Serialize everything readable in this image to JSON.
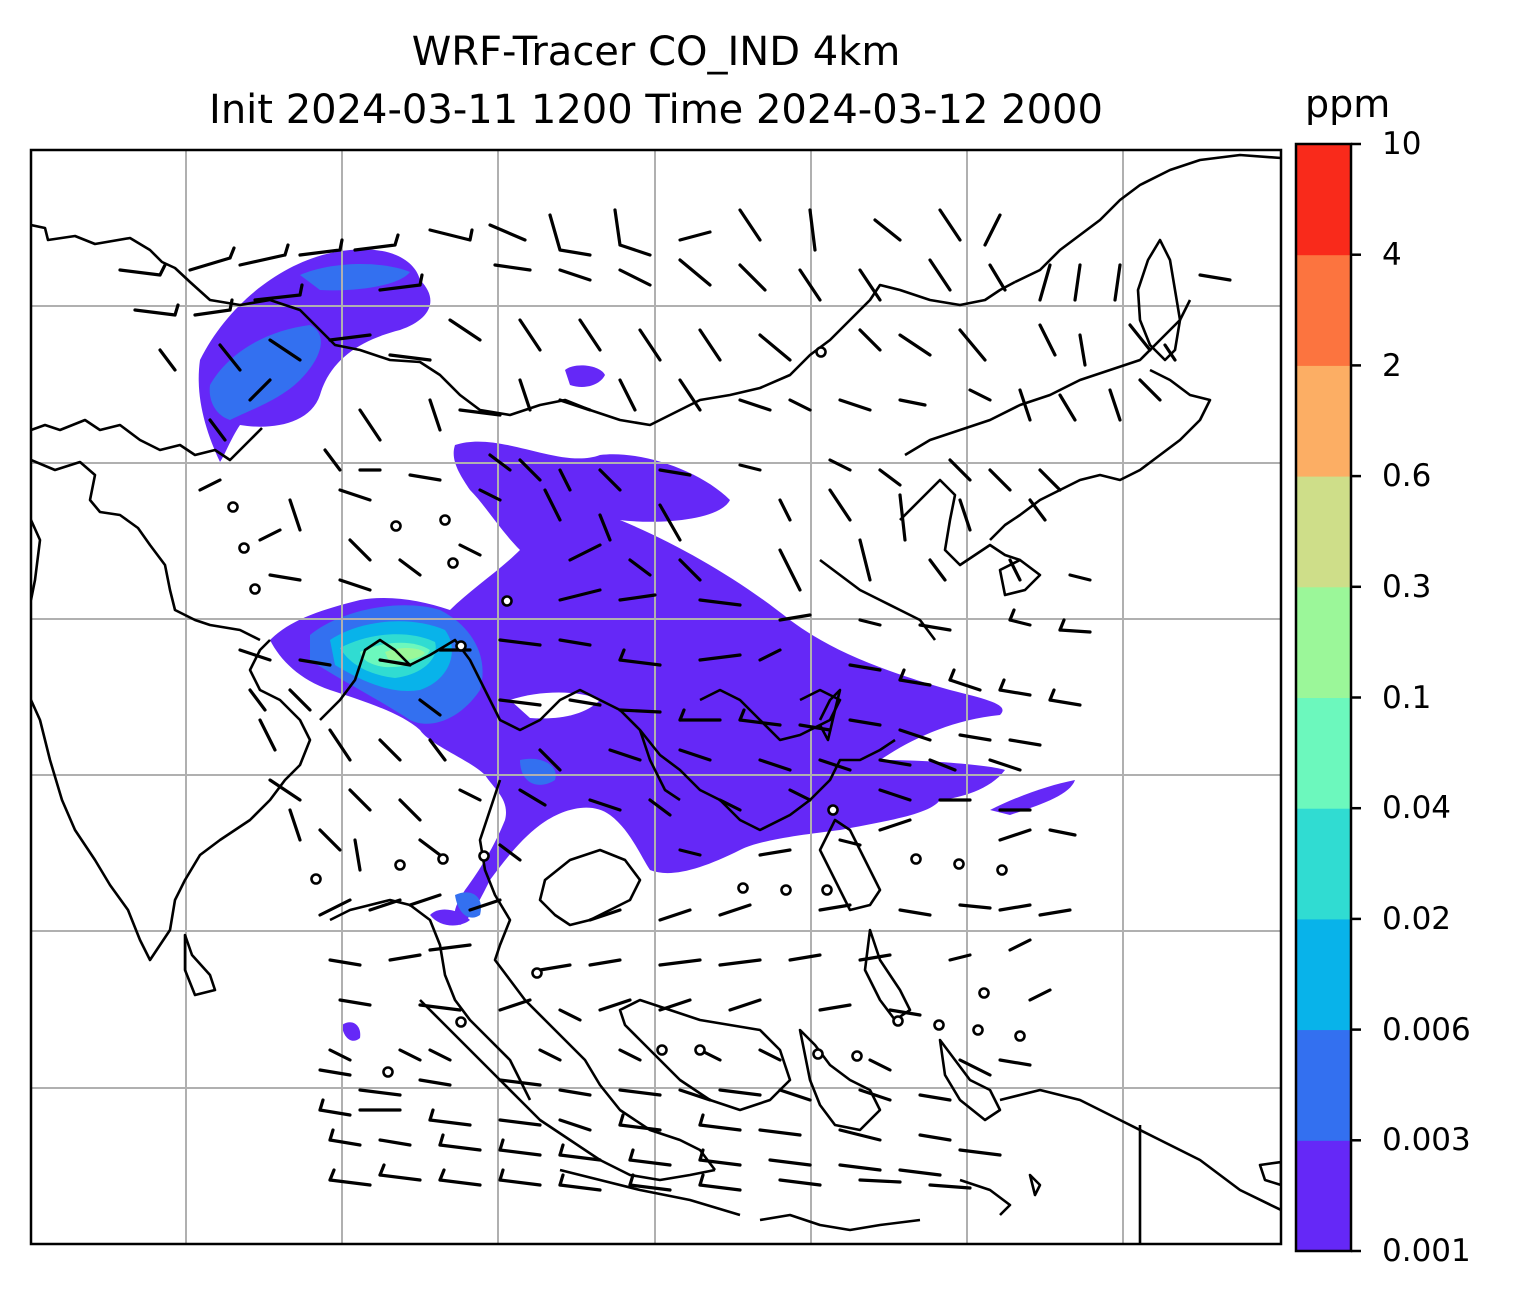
{
  "title": {
    "line1": "WRF-Tracer CO_IND 4km",
    "line2": "Init 2024-03-11 1200 Time 2024-03-12 2000"
  },
  "colorbar": {
    "unit": "ppm",
    "levels": [
      "0.001",
      "0.003",
      "0.006",
      "0.02",
      "0.04",
      "0.1",
      "0.3",
      "0.6",
      "2",
      "4",
      "10"
    ],
    "colors": [
      "#6528F7",
      "#3370F0",
      "#08B3EA",
      "#30DCD2",
      "#6CF8BD",
      "#9BF799",
      "#CEDE89",
      "#FCAE64",
      "#FC743F",
      "#F92A1B"
    ]
  },
  "map": {
    "gridlines": true,
    "coastline_color": "#000000",
    "gridline_color": "#b0b0b0",
    "wind_barbs": true
  }
}
